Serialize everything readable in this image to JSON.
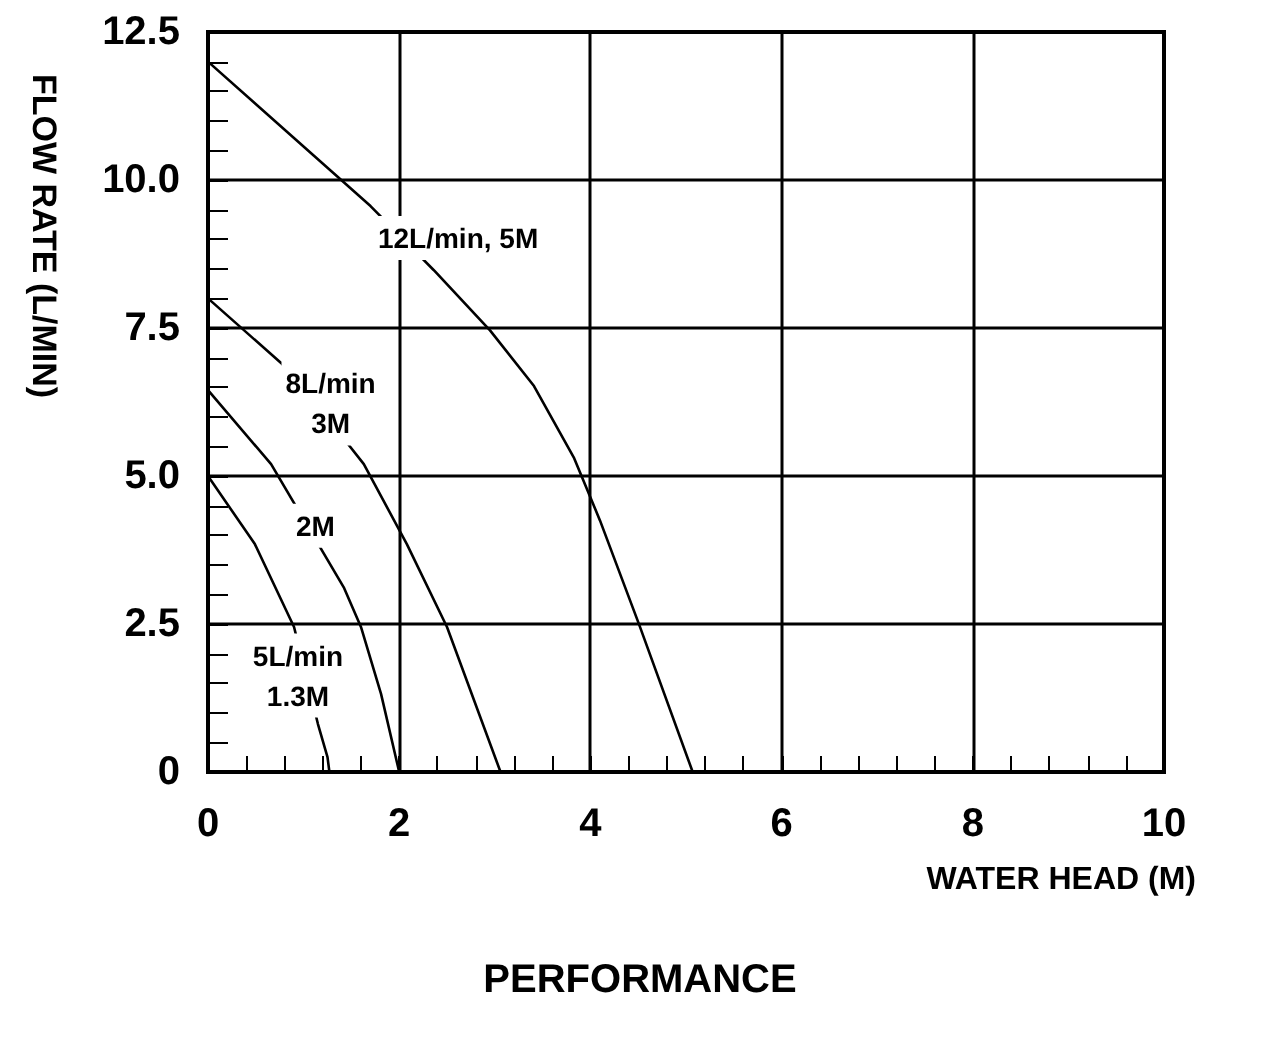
{
  "chart_data": {
    "type": "line",
    "title": "PERFORMANCE",
    "xlabel": "WATER HEAD (M)",
    "ylabel": "FLOW RATE (L/MIN)",
    "xlim": [
      0,
      10
    ],
    "ylim": [
      0,
      12.5
    ],
    "xticks": [
      0,
      {
        "value": 0.4,
        "label": null
      },
      {
        "value": 0.8,
        "label": null
      },
      {
        "value": 1.2,
        "label": null
      },
      {
        "value": 1.6,
        "label": null
      },
      2,
      {
        "value": 2.4,
        "label": null
      },
      {
        "value": 2.8,
        "label": null
      },
      {
        "value": 3.2,
        "label": null
      },
      {
        "value": 3.6,
        "label": null
      },
      4,
      {
        "value": 4.4,
        "label": null
      },
      {
        "value": 4.8,
        "label": null
      },
      {
        "value": 5.2,
        "label": null
      },
      {
        "value": 5.6,
        "label": null
      },
      6,
      {
        "value": 6.4,
        "label": null
      },
      {
        "value": 6.8,
        "label": null
      },
      {
        "value": 7.2,
        "label": null
      },
      {
        "value": 7.6,
        "label": null
      },
      8,
      {
        "value": 8.4,
        "label": null
      },
      {
        "value": 8.8,
        "label": null
      },
      {
        "value": 9.2,
        "label": null
      },
      {
        "value": 9.6,
        "label": null
      },
      10
    ],
    "yticks": [
      0,
      {
        "value": 0.5,
        "label": null
      },
      {
        "value": 1,
        "label": null
      },
      {
        "value": 1.5,
        "label": null
      },
      {
        "value": 2,
        "label": null
      },
      2.5,
      {
        "value": 3,
        "label": null
      },
      {
        "value": 3.5,
        "label": null
      },
      {
        "value": 4,
        "label": null
      },
      {
        "value": 4.5,
        "label": null
      },
      {
        "value": 5,
        "label": "5.0"
      },
      {
        "value": 5.5,
        "label": null
      },
      {
        "value": 6,
        "label": null
      },
      {
        "value": 6.5,
        "label": null
      },
      {
        "value": 7,
        "label": null
      },
      7.5,
      {
        "value": 8,
        "label": null
      },
      {
        "value": 8.5,
        "label": null
      },
      {
        "value": 9,
        "label": null
      },
      {
        "value": 9.5,
        "label": null
      },
      {
        "value": 10,
        "label": "10.0"
      },
      {
        "value": 10.5,
        "label": null
      },
      {
        "value": 11,
        "label": null
      },
      {
        "value": 11.5,
        "label": null
      },
      {
        "value": 12,
        "label": null
      },
      12.5
    ],
    "grid": true,
    "marker": "none",
    "line_style": "solid",
    "series": [
      {
        "name": "12L/min, 5M",
        "color": "#000000",
        "x": [
          0,
          1.7,
          2.36,
          2.95,
          3.41,
          3.83,
          4.1,
          4.51,
          5.07
        ],
        "values": [
          12,
          9.56,
          8.48,
          7.46,
          6.52,
          5.3,
          4.25,
          2.49,
          0
        ]
      },
      {
        "name": "8L/min\n3M",
        "color": "#000000",
        "x": [
          0,
          0.77,
          1.46,
          1.63,
          2.08,
          2.5,
          3.06
        ],
        "values": [
          8,
          6.9,
          5.55,
          5.2,
          3.85,
          2.45,
          0
        ]
      },
      {
        "name": "2M",
        "color": "#000000",
        "x": [
          0,
          0.66,
          1.42,
          1.6,
          1.81,
          2
        ],
        "values": [
          6.45,
          5.2,
          3.12,
          2.45,
          1.32,
          0
        ]
      },
      {
        "name": "5L/min\n1.3M",
        "color": "#000000",
        "x": [
          0,
          0.49,
          0.9,
          1.15,
          1.25,
          1.27
        ],
        "values": [
          5,
          3.85,
          2.45,
          0.81,
          0.25,
          0
        ]
      }
    ]
  }
}
